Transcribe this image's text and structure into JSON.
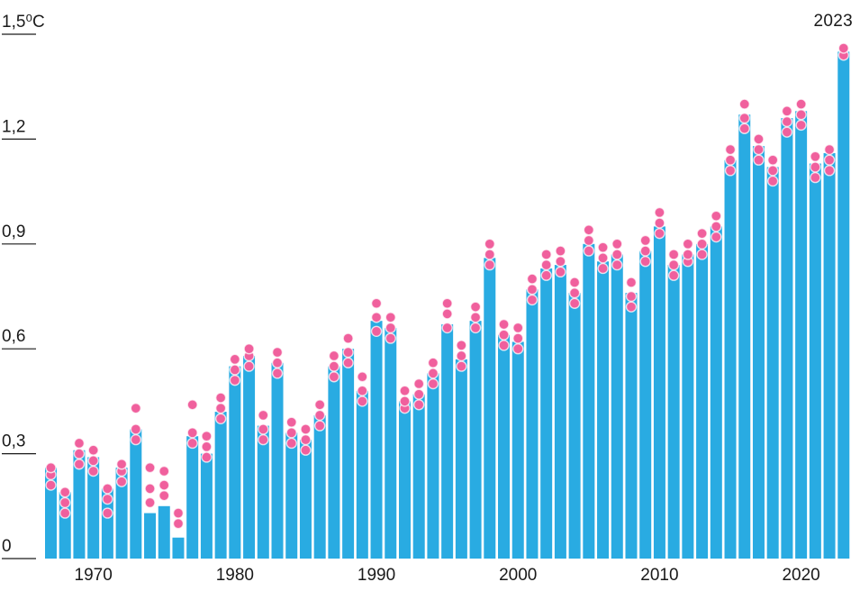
{
  "chart_data": {
    "type": "bar",
    "title": "",
    "xlabel": "",
    "ylabel": "",
    "unit": "°C",
    "ylim": [
      0,
      1.5
    ],
    "grid": false,
    "legend": false,
    "colors": {
      "bar": "#29abe2",
      "dot": "#f0609d",
      "dot_stroke": "#ffffff",
      "text": "#1a1a1a",
      "background": "#ffffff"
    },
    "y_ticks": [
      {
        "value": 1.5,
        "label": "1,5⁰C"
      },
      {
        "value": 1.2,
        "label": "1,2"
      },
      {
        "value": 0.9,
        "label": "0,9"
      },
      {
        "value": 0.6,
        "label": "0,6"
      },
      {
        "value": 0.3,
        "label": "0,3"
      },
      {
        "value": 0.0,
        "label": "0"
      }
    ],
    "x_ticks": [
      {
        "year": 1970,
        "label": "1970"
      },
      {
        "year": 1980,
        "label": "1980"
      },
      {
        "year": 1990,
        "label": "1990"
      },
      {
        "year": 2000,
        "label": "2000"
      },
      {
        "year": 2010,
        "label": "2010"
      },
      {
        "year": 2020,
        "label": "2020"
      }
    ],
    "annotations": [
      {
        "text": "2023",
        "year": 2023,
        "position": "top-right"
      }
    ],
    "years": [
      1967,
      1968,
      1969,
      1970,
      1971,
      1972,
      1973,
      1974,
      1975,
      1976,
      1977,
      1978,
      1979,
      1980,
      1981,
      1982,
      1983,
      1984,
      1985,
      1986,
      1987,
      1988,
      1989,
      1990,
      1991,
      1992,
      1993,
      1994,
      1995,
      1996,
      1997,
      1998,
      1999,
      2000,
      2001,
      2002,
      2003,
      2004,
      2005,
      2006,
      2007,
      2008,
      2009,
      2010,
      2011,
      2012,
      2013,
      2014,
      2015,
      2016,
      2017,
      2018,
      2019,
      2020,
      2021,
      2022,
      2023
    ],
    "series": [
      {
        "name": "annual-temperature-anomaly-bars",
        "type": "bar",
        "values": [
          0.26,
          0.19,
          0.31,
          0.29,
          0.2,
          0.26,
          0.37,
          0.13,
          0.15,
          0.06,
          0.35,
          0.3,
          0.42,
          0.55,
          0.58,
          0.38,
          0.56,
          0.36,
          0.34,
          0.41,
          0.55,
          0.6,
          0.48,
          0.68,
          0.66,
          0.45,
          0.47,
          0.53,
          0.67,
          0.57,
          0.68,
          0.86,
          0.64,
          0.62,
          0.77,
          0.83,
          0.84,
          0.76,
          0.9,
          0.85,
          0.87,
          0.76,
          0.88,
          0.95,
          0.84,
          0.87,
          0.9,
          0.95,
          1.14,
          1.27,
          1.18,
          1.12,
          1.26,
          1.28,
          1.13,
          1.16,
          1.45
        ]
      },
      {
        "name": "dataset-estimate-dots",
        "type": "scatter",
        "values_per_year": [
          [
            0.21,
            0.24,
            0.26
          ],
          [
            0.13,
            0.16,
            0.19
          ],
          [
            0.27,
            0.3,
            0.33
          ],
          [
            0.25,
            0.28,
            0.31
          ],
          [
            0.13,
            0.17,
            0.2
          ],
          [
            0.22,
            0.25,
            0.27
          ],
          [
            0.34,
            0.37,
            0.43
          ],
          [
            0.16,
            0.2,
            0.26
          ],
          [
            0.18,
            0.21,
            0.25
          ],
          [
            0.1,
            0.13
          ],
          [
            0.33,
            0.36,
            0.44
          ],
          [
            0.29,
            0.32,
            0.35
          ],
          [
            0.4,
            0.43,
            0.46
          ],
          [
            0.51,
            0.54,
            0.57
          ],
          [
            0.55,
            0.58,
            0.6
          ],
          [
            0.34,
            0.37,
            0.41
          ],
          [
            0.53,
            0.56,
            0.59
          ],
          [
            0.33,
            0.36,
            0.39
          ],
          [
            0.31,
            0.34,
            0.37
          ],
          [
            0.38,
            0.41,
            0.44
          ],
          [
            0.52,
            0.55,
            0.58
          ],
          [
            0.56,
            0.59,
            0.63
          ],
          [
            0.45,
            0.48,
            0.52
          ],
          [
            0.65,
            0.69,
            0.73
          ],
          [
            0.63,
            0.66,
            0.69
          ],
          [
            0.43,
            0.45,
            0.48
          ],
          [
            0.44,
            0.47,
            0.5
          ],
          [
            0.5,
            0.53,
            0.56
          ],
          [
            0.66,
            0.7,
            0.73
          ],
          [
            0.55,
            0.58,
            0.61
          ],
          [
            0.66,
            0.69,
            0.72
          ],
          [
            0.84,
            0.87,
            0.9
          ],
          [
            0.61,
            0.64,
            0.67
          ],
          [
            0.6,
            0.63,
            0.66
          ],
          [
            0.74,
            0.77,
            0.8
          ],
          [
            0.81,
            0.84,
            0.87
          ],
          [
            0.82,
            0.85,
            0.88
          ],
          [
            0.73,
            0.76,
            0.79
          ],
          [
            0.88,
            0.91,
            0.94
          ],
          [
            0.83,
            0.86,
            0.89
          ],
          [
            0.84,
            0.87,
            0.9
          ],
          [
            0.72,
            0.75,
            0.79
          ],
          [
            0.85,
            0.88,
            0.91
          ],
          [
            0.93,
            0.96,
            0.99
          ],
          [
            0.81,
            0.84,
            0.87
          ],
          [
            0.85,
            0.87,
            0.9
          ],
          [
            0.87,
            0.9,
            0.93
          ],
          [
            0.92,
            0.95,
            0.98
          ],
          [
            1.11,
            1.14,
            1.17
          ],
          [
            1.23,
            1.26,
            1.3
          ],
          [
            1.14,
            1.17,
            1.2
          ],
          [
            1.08,
            1.11,
            1.14
          ],
          [
            1.22,
            1.25,
            1.28
          ],
          [
            1.24,
            1.27,
            1.3
          ],
          [
            1.09,
            1.12,
            1.15
          ],
          [
            1.11,
            1.14,
            1.17
          ],
          [
            1.44,
            1.46
          ]
        ]
      }
    ]
  }
}
